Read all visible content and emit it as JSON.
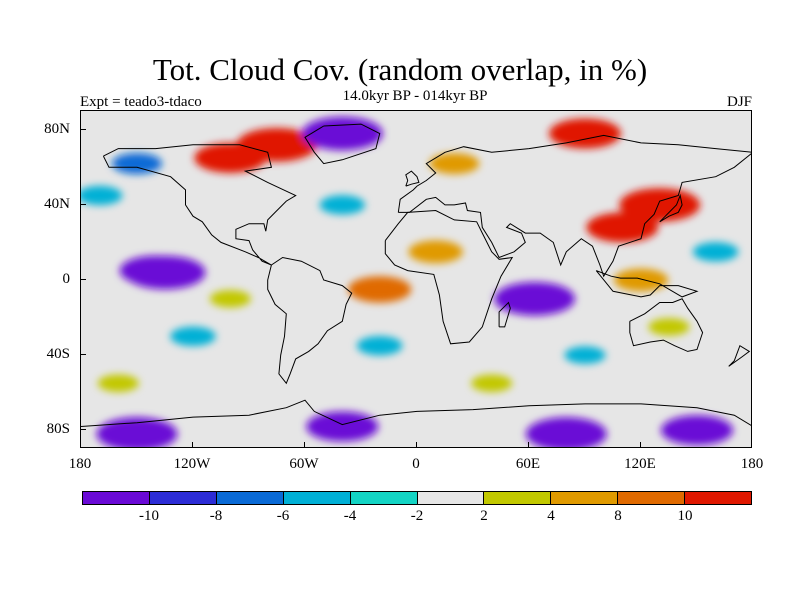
{
  "figure": {
    "title": "Tot. Cloud Cov. (random overlap, in %)",
    "subtitle": "14.0kyr BP - 014kyr BP",
    "experiment": "Expt = teado3-tdaco",
    "season": "DJF"
  },
  "map": {
    "projection": "cylindrical equidistant",
    "lon_range": [
      -180,
      180
    ],
    "lat_range": [
      -90,
      90
    ],
    "lat_ticks": [
      {
        "value": 80,
        "label": "80N"
      },
      {
        "value": 40,
        "label": "40N"
      },
      {
        "value": 0,
        "label": "0"
      },
      {
        "value": -40,
        "label": "40S"
      },
      {
        "value": -80,
        "label": "80S"
      }
    ],
    "lon_ticks": [
      {
        "value": -180,
        "label": "180"
      },
      {
        "value": -120,
        "label": "120W"
      },
      {
        "value": -60,
        "label": "60W"
      },
      {
        "value": 0,
        "label": "0"
      },
      {
        "value": 60,
        "label": "60E"
      },
      {
        "value": 120,
        "label": "120E"
      },
      {
        "value": 180,
        "label": "180"
      }
    ],
    "background_color": "#e6e6e6",
    "anomalies": [
      {
        "region": "central-pacific-eq",
        "lon": -140,
        "lat": 5,
        "level": -10
      },
      {
        "region": "central-pacific-eq-core",
        "lon": -135,
        "lat": 4,
        "level": -12
      },
      {
        "region": "indian-ocean",
        "lon": 65,
        "lat": -10,
        "level": -10
      },
      {
        "region": "indian-ocean-core",
        "lon": 63,
        "lat": -10,
        "level": -12
      },
      {
        "region": "southern-ocean-w",
        "lon": -150,
        "lat": -82,
        "level": -12
      },
      {
        "region": "southern-ocean-c",
        "lon": -40,
        "lat": -78,
        "level": -10
      },
      {
        "region": "southern-ocean-e",
        "lon": 80,
        "lat": -82,
        "level": -12
      },
      {
        "region": "southern-ocean-ee",
        "lon": 150,
        "lat": -80,
        "level": -10
      },
      {
        "region": "canada-arctic",
        "lon": -100,
        "lat": 65,
        "level": 10
      },
      {
        "region": "canada-arctic-2",
        "lon": -75,
        "lat": 72,
        "level": 12
      },
      {
        "region": "greenland-sea",
        "lon": -40,
        "lat": 78,
        "level": -12
      },
      {
        "region": "siberia-n",
        "lon": 90,
        "lat": 78,
        "level": 10
      },
      {
        "region": "east-asia",
        "lon": 110,
        "lat": 28,
        "level": 10
      },
      {
        "region": "east-asia-2",
        "lon": 130,
        "lat": 40,
        "level": 12
      },
      {
        "region": "tropical-atlantic",
        "lon": -20,
        "lat": -5,
        "level": 8
      },
      {
        "region": "africa-n",
        "lon": 10,
        "lat": 15,
        "level": 6
      },
      {
        "region": "north-pacific",
        "lon": -170,
        "lat": 45,
        "level": -4
      },
      {
        "region": "north-atlantic",
        "lon": -40,
        "lat": 40,
        "level": -4
      },
      {
        "region": "south-pacific",
        "lon": -120,
        "lat": -30,
        "level": -4
      },
      {
        "region": "south-atlantic",
        "lon": -20,
        "lat": -35,
        "level": -4
      },
      {
        "region": "southern-midlat",
        "lon": -160,
        "lat": -55,
        "level": 3
      },
      {
        "region": "southern-midlat-2",
        "lon": 40,
        "lat": -55,
        "level": 3
      },
      {
        "region": "tropical-pacific-e",
        "lon": -100,
        "lat": -10,
        "level": 3
      },
      {
        "region": "maritime-continent",
        "lon": 120,
        "lat": 0,
        "level": 6
      },
      {
        "region": "western-pacific",
        "lon": 160,
        "lat": 15,
        "level": -4
      },
      {
        "region": "north-europe",
        "lon": 20,
        "lat": 62,
        "level": 5
      },
      {
        "region": "alaska",
        "lon": -150,
        "lat": 62,
        "level": -5
      },
      {
        "region": "south-indian",
        "lon": 90,
        "lat": -40,
        "level": -3
      },
      {
        "region": "australia",
        "lon": 135,
        "lat": -25,
        "level": 3
      }
    ]
  },
  "colorbar": {
    "colors": [
      "#6a0ad6",
      "#2c2cd6",
      "#0a6ad6",
      "#00b0d6",
      "#13d4c4",
      "#e6e6e6",
      "#c2c800",
      "#e09a00",
      "#e06a00",
      "#e01800"
    ],
    "labels": [
      {
        "label": "-10",
        "boundary": 1
      },
      {
        "label": "-8",
        "boundary": 2
      },
      {
        "label": "-6",
        "boundary": 3
      },
      {
        "label": "-4",
        "boundary": 4
      },
      {
        "label": "-2",
        "boundary": 5
      },
      {
        "label": "2",
        "boundary": 6
      },
      {
        "label": "4",
        "boundary": 7
      },
      {
        "label": "8",
        "boundary": 8
      },
      {
        "label": "10",
        "boundary": 9
      }
    ]
  }
}
